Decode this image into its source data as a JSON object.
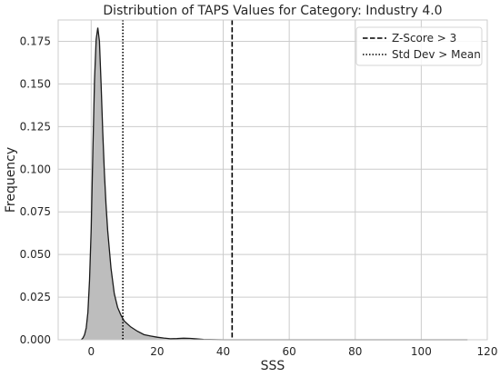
{
  "chart_data": {
    "type": "area",
    "title": "Distribution of TAPS Values for Category: Industry 4.0",
    "xlabel": "SSS",
    "ylabel": "Frequency",
    "xlim": [
      -10,
      120
    ],
    "ylim": [
      0,
      0.1875
    ],
    "x_ticks": [
      "0",
      "20",
      "40",
      "60",
      "80",
      "100",
      "120"
    ],
    "x_tick_values": [
      0,
      20,
      40,
      60,
      80,
      100,
      120
    ],
    "y_ticks": [
      "0.000",
      "0.025",
      "0.050",
      "0.075",
      "0.100",
      "0.125",
      "0.150",
      "0.175"
    ],
    "y_tick_values": [
      0,
      0.025,
      0.05,
      0.075,
      0.1,
      0.125,
      0.15,
      0.175
    ],
    "grid": true,
    "legend_position": "top-right",
    "series": [
      {
        "kind": "density",
        "color": "#bdbdbd",
        "line_color": "#1a1a1a",
        "x": [
          -3,
          -2.5,
          -2,
          -1.5,
          -1,
          -0.5,
          0,
          0.5,
          1,
          1.5,
          2,
          2.5,
          3,
          3.5,
          4,
          4.5,
          5,
          6,
          7,
          8,
          9,
          10,
          12,
          14,
          16,
          18,
          20,
          22,
          24,
          26,
          28,
          30,
          32,
          34,
          36,
          40,
          50,
          60,
          80,
          100,
          114
        ],
        "y": [
          0,
          0.001,
          0.003,
          0.007,
          0.016,
          0.035,
          0.065,
          0.11,
          0.152,
          0.176,
          0.183,
          0.175,
          0.15,
          0.122,
          0.098,
          0.079,
          0.064,
          0.042,
          0.027,
          0.019,
          0.0145,
          0.011,
          0.0075,
          0.005,
          0.003,
          0.0022,
          0.0015,
          0.001,
          0.0006,
          0.0007,
          0.0009,
          0.0008,
          0.0005,
          0.0002,
          0.0001,
          0,
          0,
          0,
          0,
          0,
          0
        ]
      }
    ],
    "reference_lines": [
      {
        "label": "Z-Score > 3",
        "x": 42.7,
        "style": "dashed",
        "color": "#000000"
      },
      {
        "label": "Std Dev > Mean",
        "x": 9.6,
        "style": "dotted",
        "color": "#000000"
      }
    ]
  }
}
